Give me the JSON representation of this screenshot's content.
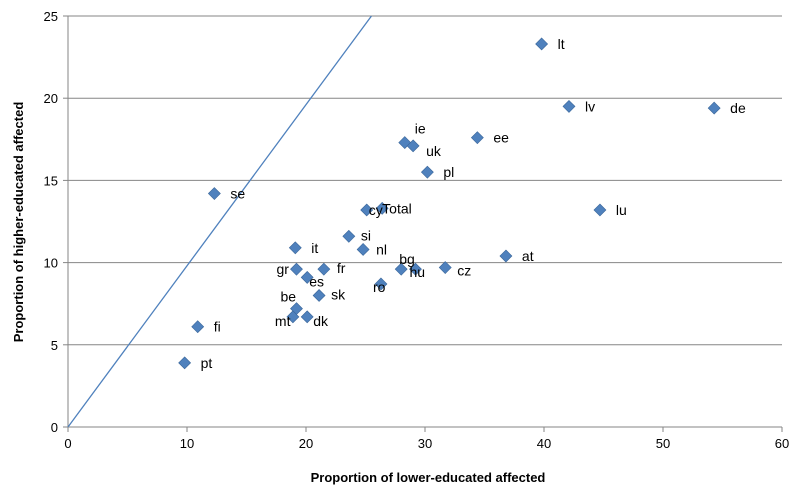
{
  "chart_data": {
    "type": "scatter",
    "title": "",
    "xlabel": "Proportion of lower-educated affected",
    "ylabel": "Proportion of higher-educated affected",
    "xlim": [
      0,
      60
    ],
    "ylim": [
      0,
      25
    ],
    "xticks": [
      0,
      10,
      20,
      30,
      40,
      50,
      60
    ],
    "yticks": [
      0,
      5,
      10,
      15,
      20,
      25
    ],
    "grid": "horizontal",
    "legend": "none",
    "marker": "diamond",
    "marker_color": "#4F81BD",
    "reference_line": {
      "from": [
        0,
        0
      ],
      "to": [
        25.5,
        25
      ],
      "color": "#4F81BD"
    },
    "points": [
      {
        "label": "lt",
        "x": 39.8,
        "y": 23.3
      },
      {
        "label": "lv",
        "x": 42.1,
        "y": 19.5
      },
      {
        "label": "de",
        "x": 54.3,
        "y": 19.4
      },
      {
        "label": "ee",
        "x": 34.4,
        "y": 17.6
      },
      {
        "label": "ie",
        "x": 28.3,
        "y": 17.3
      },
      {
        "label": "uk",
        "x": 29.0,
        "y": 17.1
      },
      {
        "label": "pl",
        "x": 30.2,
        "y": 15.5
      },
      {
        "label": "se",
        "x": 12.3,
        "y": 14.2
      },
      {
        "label": "cy",
        "x": 25.1,
        "y": 13.2
      },
      {
        "label": "Total",
        "x": 26.4,
        "y": 13.3
      },
      {
        "label": "lu",
        "x": 44.7,
        "y": 13.2
      },
      {
        "label": "si",
        "x": 23.6,
        "y": 11.6
      },
      {
        "label": "it",
        "x": 19.1,
        "y": 10.9
      },
      {
        "label": "nl",
        "x": 24.8,
        "y": 10.8
      },
      {
        "label": "at",
        "x": 36.8,
        "y": 10.4
      },
      {
        "label": "bg",
        "x": 28.0,
        "y": 9.6
      },
      {
        "label": "hu",
        "x": 29.2,
        "y": 9.6
      },
      {
        "label": "cz",
        "x": 31.7,
        "y": 9.7
      },
      {
        "label": "gr",
        "x": 19.2,
        "y": 9.6
      },
      {
        "label": "es",
        "x": 20.1,
        "y": 9.1
      },
      {
        "label": "fr",
        "x": 21.5,
        "y": 9.6
      },
      {
        "label": "ro",
        "x": 26.3,
        "y": 8.7
      },
      {
        "label": "sk",
        "x": 21.1,
        "y": 8.0
      },
      {
        "label": "be",
        "x": 19.2,
        "y": 7.2
      },
      {
        "label": "mt",
        "x": 18.9,
        "y": 6.7
      },
      {
        "label": "dk",
        "x": 20.1,
        "y": 6.7
      },
      {
        "label": "fi",
        "x": 10.9,
        "y": 6.1
      },
      {
        "label": "pt",
        "x": 9.8,
        "y": 3.9
      }
    ]
  }
}
